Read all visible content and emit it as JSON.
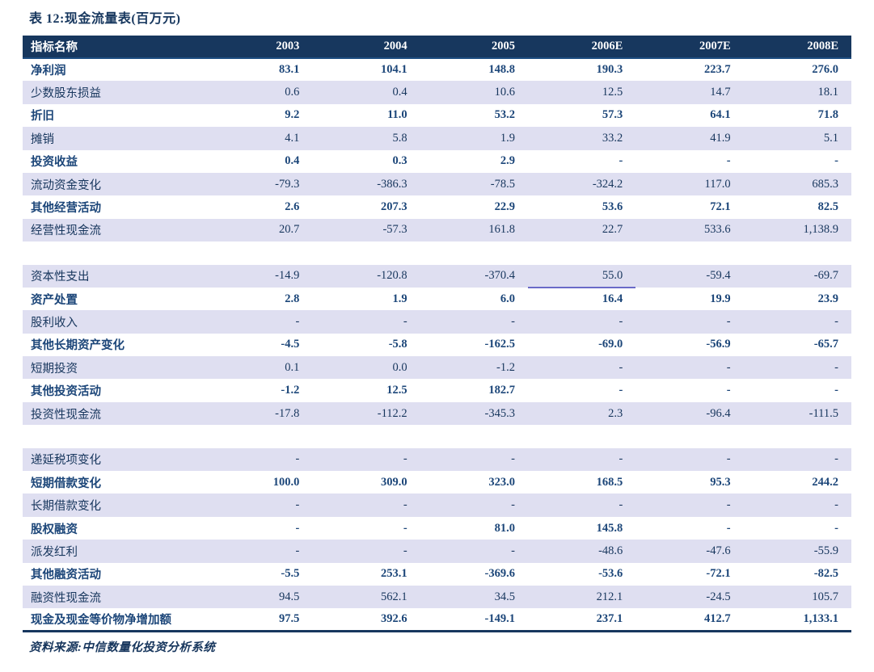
{
  "title": "表 12:现金流量表(百万元)",
  "source_note": "资料来源:中信数量化投资分析系统",
  "colors": {
    "header_bg": "#17375E",
    "header_text": "#FFFFFF",
    "shaded_row_bg": "#DFDFF1",
    "shaded_row_text": "#17365D",
    "plain_row_text": "#1C4679",
    "bottom_rule": "#17375E",
    "capex_underline": "#6A6AC8"
  },
  "table": {
    "header": [
      "指标名称",
      "2003",
      "2004",
      "2005",
      "2006E",
      "2007E",
      "2008E"
    ],
    "sections": [
      {
        "name": "operating",
        "rows": [
          {
            "label": "净利润",
            "values": [
              "83.1",
              "104.1",
              "148.8",
              "190.3",
              "223.7",
              "276.0"
            ],
            "shaded": false
          },
          {
            "label": "少数股东损益",
            "values": [
              "0.6",
              "0.4",
              "10.6",
              "12.5",
              "14.7",
              "18.1"
            ],
            "shaded": true
          },
          {
            "label": "折旧",
            "values": [
              "9.2",
              "11.0",
              "53.2",
              "57.3",
              "64.1",
              "71.8"
            ],
            "shaded": false
          },
          {
            "label": "摊销",
            "values": [
              "4.1",
              "5.8",
              "1.9",
              "33.2",
              "41.9",
              "5.1"
            ],
            "shaded": true
          },
          {
            "label": "投资收益",
            "values": [
              "0.4",
              "0.3",
              "2.9",
              "-",
              "-",
              "-"
            ],
            "shaded": false
          },
          {
            "label": "流动资金变化",
            "values": [
              "-79.3",
              "-386.3",
              "-78.5",
              "-324.2",
              "117.0",
              "685.3"
            ],
            "shaded": true
          },
          {
            "label": "其他经营活动",
            "values": [
              "2.6",
              "207.3",
              "22.9",
              "53.6",
              "72.1",
              "82.5"
            ],
            "shaded": false
          },
          {
            "label": "经营性现金流",
            "values": [
              "20.7",
              "-57.3",
              "161.8",
              "22.7",
              "533.6",
              "1,138.9"
            ],
            "shaded": true
          }
        ]
      },
      {
        "name": "investing",
        "rows": [
          {
            "label": "资本性支出",
            "values": [
              "-14.9",
              "-120.8",
              "-370.4",
              "55.0",
              "-59.4",
              "-69.7"
            ],
            "shaded": true,
            "underline_col": 3
          },
          {
            "label": "资产处置",
            "values": [
              "2.8",
              "1.9",
              "6.0",
              "16.4",
              "19.9",
              "23.9"
            ],
            "shaded": false
          },
          {
            "label": "股利收入",
            "values": [
              "-",
              "-",
              "-",
              "-",
              "-",
              "-"
            ],
            "shaded": true
          },
          {
            "label": "其他长期资产变化",
            "values": [
              "-4.5",
              "-5.8",
              "-162.5",
              "-69.0",
              "-56.9",
              "-65.7"
            ],
            "shaded": false
          },
          {
            "label": "短期投资",
            "values": [
              "0.1",
              "0.0",
              "-1.2",
              "-",
              "-",
              "-"
            ],
            "shaded": true
          },
          {
            "label": "其他投资活动",
            "values": [
              "-1.2",
              "12.5",
              "182.7",
              "-",
              "-",
              "-"
            ],
            "shaded": false
          },
          {
            "label": "投资性现金流",
            "values": [
              "-17.8",
              "-112.2",
              "-345.3",
              "2.3",
              "-96.4",
              "-111.5"
            ],
            "shaded": true
          }
        ]
      },
      {
        "name": "financing",
        "rows": [
          {
            "label": "递延税项变化",
            "values": [
              "-",
              "-",
              "-",
              "-",
              "-",
              "-"
            ],
            "shaded": true
          },
          {
            "label": "短期借款变化",
            "values": [
              "100.0",
              "309.0",
              "323.0",
              "168.5",
              "95.3",
              "244.2"
            ],
            "shaded": false
          },
          {
            "label": "长期借款变化",
            "values": [
              "-",
              "-",
              "-",
              "-",
              "-",
              "-"
            ],
            "shaded": true
          },
          {
            "label": "股权融资",
            "values": [
              "-",
              "-",
              "81.0",
              "145.8",
              "-",
              "-"
            ],
            "shaded": false
          },
          {
            "label": "派发红利",
            "values": [
              "-",
              "-",
              "-",
              "-48.6",
              "-47.6",
              "-55.9"
            ],
            "shaded": true
          },
          {
            "label": "其他融资活动",
            "values": [
              "-5.5",
              "253.1",
              "-369.6",
              "-53.6",
              "-72.1",
              "-82.5"
            ],
            "shaded": false
          },
          {
            "label": "融资性现金流",
            "values": [
              "94.5",
              "562.1",
              "34.5",
              "212.1",
              "-24.5",
              "105.7"
            ],
            "shaded": true
          },
          {
            "label": "现金及现金等价物净增加额",
            "values": [
              "97.5",
              "392.6",
              "-149.1",
              "237.1",
              "412.7",
              "1,133.1"
            ],
            "shaded": false
          }
        ]
      }
    ]
  }
}
